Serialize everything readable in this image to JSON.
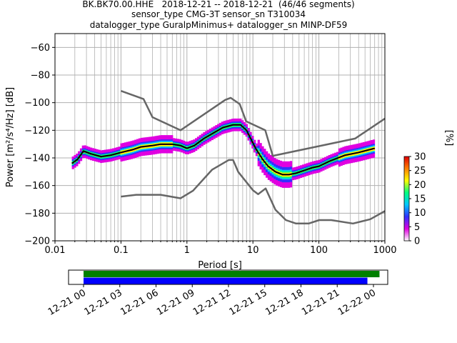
{
  "header": {
    "line1": "BK.BK70.00.HHE   2018-12-21 -- 2018-12-21  (46/46 segments)",
    "line2": "sensor_type CMG-3T sensor_sn T310034",
    "line3": "datalogger_type GuralpMinimus+ datalogger_sn MINP-DF59"
  },
  "chart_data": [
    {
      "type": "heatmap",
      "title": "",
      "xlabel": "Period [s]",
      "ylabel": "Power [m²/s⁴/Hz] [dB]",
      "xscale": "log",
      "xlim": [
        0.01,
        1000
      ],
      "ylim": [
        -200,
        -50
      ],
      "grid": true,
      "x_ticks": [
        "0.01",
        "0.1",
        "1",
        "10",
        "100",
        "1000"
      ],
      "y_ticks": [
        "-60",
        "-80",
        "-100",
        "-120",
        "-140",
        "-160",
        "-180",
        "-200"
      ],
      "colorbar": {
        "label": "[%]",
        "range": [
          0,
          30
        ],
        "ticks": [
          "0",
          "5",
          "10",
          "15",
          "20",
          "25",
          "30"
        ],
        "colormap": [
          "#ffffff",
          "#e000e0",
          "#3030ff",
          "#00c8ff",
          "#00ff80",
          "#ffff00",
          "#ff8000",
          "#e00000"
        ]
      },
      "series": [
        {
          "role": "mean",
          "color": "#000000",
          "x": [
            0.018,
            0.022,
            0.027,
            0.035,
            0.05,
            0.07,
            0.1,
            0.15,
            0.2,
            0.3,
            0.4,
            0.6,
            0.8,
            1.0,
            1.3,
            1.8,
            2.5,
            3.5,
            5,
            6.5,
            8,
            9.5,
            11,
            14,
            17,
            22,
            28,
            35,
            45,
            60,
            80,
            100,
            150,
            250,
            400,
            700
          ],
          "y": [
            -144,
            -141,
            -135,
            -137,
            -139,
            -138,
            -136,
            -134,
            -132,
            -131,
            -130,
            -130,
            -131,
            -133,
            -131,
            -126,
            -122,
            -118,
            -116,
            -116,
            -120,
            -127,
            -133,
            -141,
            -146,
            -150,
            -152,
            -152,
            -151,
            -149,
            -147,
            -146,
            -142,
            -138,
            -136,
            -133
          ]
        },
        {
          "role": "reference-high",
          "color": "#666666",
          "x": [
            0.1,
            0.22,
            0.3,
            0.8,
            3.8,
            4.6,
            6.3,
            7.9,
            15.4,
            20,
            354,
            1000
          ],
          "y": [
            -91.5,
            -97.4,
            -110.5,
            -120.0,
            -98.0,
            -96.5,
            -101.0,
            -113.5,
            -120.0,
            -138.5,
            -126.0,
            -111.5
          ]
        },
        {
          "role": "reference-low",
          "color": "#666666",
          "x": [
            0.1,
            0.17,
            0.4,
            0.8,
            1.24,
            2.4,
            4.3,
            5,
            6,
            10,
            12,
            15.6,
            21.9,
            31.6,
            45,
            70,
            101,
            154,
            328,
            600,
            1000
          ],
          "y": [
            -168.0,
            -166.7,
            -166.7,
            -169.2,
            -163.7,
            -148.6,
            -141.5,
            -141.5,
            -150.2,
            -163.4,
            -166.2,
            -162.1,
            -177.5,
            -185.0,
            -187.5,
            -187.5,
            -185.0,
            -185.0,
            -187.5,
            -184.4,
            -178.5
          ]
        }
      ]
    },
    {
      "type": "timeline",
      "xlim": [
        "2018-12-21 00",
        "2018-12-22 00"
      ],
      "x_ticks": [
        "12-21 00",
        "12-21 03",
        "12-21 06",
        "12-21 09",
        "12-21 12",
        "12-21 15",
        "12-21 18",
        "12-21 21",
        "12-22 00"
      ],
      "bars": [
        {
          "color": "#008000",
          "start_hours": 0.0,
          "end_hours": 24.5
        },
        {
          "color": "#0000ff",
          "start_hours": 0.0,
          "end_hours": 23.5
        }
      ]
    }
  ]
}
